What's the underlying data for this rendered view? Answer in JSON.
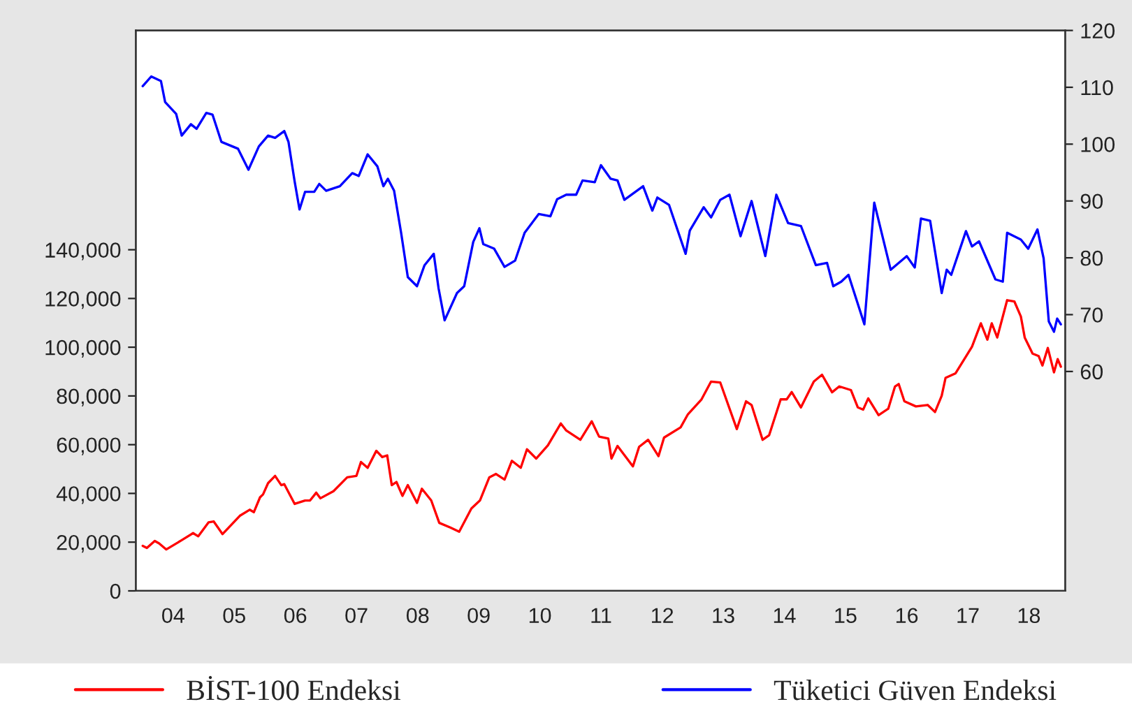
{
  "chart_data": {
    "type": "line",
    "legend": "bottom",
    "grid": false,
    "xlim": [
      "2003-11-21",
      "2019-02-03"
    ],
    "xticks": [
      {
        "value": "2004-07-01",
        "label": "04"
      },
      {
        "value": "2005-07-01",
        "label": "05"
      },
      {
        "value": "2006-07-01",
        "label": "06"
      },
      {
        "value": "2007-07-01",
        "label": "07"
      },
      {
        "value": "2008-07-01",
        "label": "08"
      },
      {
        "value": "2009-07-01",
        "label": "09"
      },
      {
        "value": "2010-07-01",
        "label": "10"
      },
      {
        "value": "2011-07-01",
        "label": "11"
      },
      {
        "value": "2012-07-01",
        "label": "12"
      },
      {
        "value": "2013-07-01",
        "label": "13"
      },
      {
        "value": "2014-07-01",
        "label": "14"
      },
      {
        "value": "2015-07-01",
        "label": "15"
      },
      {
        "value": "2016-07-01",
        "label": "16"
      },
      {
        "value": "2017-07-01",
        "label": "17"
      },
      {
        "value": "2018-07-01",
        "label": "18"
      }
    ],
    "ylim": [
      0,
      230000
    ],
    "yticks": [
      0,
      {
        "value": 20000,
        "label": "20,000"
      },
      {
        "value": 40000,
        "label": "40,000"
      },
      {
        "value": 60000,
        "label": "60,000"
      },
      {
        "value": 80000,
        "label": "80,000"
      },
      {
        "value": 100000,
        "label": "100,000"
      },
      {
        "value": 120000,
        "label": "120,000"
      },
      {
        "value": 140000,
        "label": "140,000"
      }
    ],
    "y2lim": [
      21.4,
      120
    ],
    "y2ticks": [
      60,
      70,
      80,
      90,
      100,
      110,
      120
    ],
    "series": [
      {
        "name": "BİST-100 Endeksi",
        "color": "#ff0000",
        "x": [
          "2004-01-01",
          "2004-01-26",
          "2004-03-13",
          "2004-04-08",
          "2004-05-21",
          "2004-08-21",
          "2004-10-28",
          "2004-11-28",
          "2005-01-28",
          "2005-02-28",
          "2005-04-22",
          "2005-08-03",
          "2005-10-01",
          "2005-10-26",
          "2005-12-02",
          "2005-12-20",
          "2006-01-19",
          "2006-03-02",
          "2006-04-08",
          "2006-04-26",
          "2006-06-27",
          "2006-08-28",
          "2006-09-27",
          "2006-11-03",
          "2006-11-28",
          "2007-02-14",
          "2007-05-07",
          "2007-07-01",
          "2007-07-28",
          "2007-09-06",
          "2007-10-28",
          "2007-12-02",
          "2008-01-01",
          "2008-01-28",
          "2008-02-25",
          "2008-04-01",
          "2008-05-03",
          "2008-06-27",
          "2008-07-26",
          "2008-09-20",
          "2008-11-07",
          "2009-01-12",
          "2009-03-06",
          "2009-05-18",
          "2009-07-08",
          "2009-09-02",
          "2009-10-12",
          "2009-12-02",
          "2010-01-15",
          "2010-03-09",
          "2010-04-15",
          "2010-06-09",
          "2010-08-18",
          "2010-11-03",
          "2010-12-06",
          "2011-02-28",
          "2011-05-07",
          "2011-06-20",
          "2011-08-14",
          "2011-09-02",
          "2011-10-08",
          "2012-01-08",
          "2012-02-14",
          "2012-04-08",
          "2012-06-09",
          "2012-07-12",
          "2012-10-19",
          "2012-12-02",
          "2013-02-21",
          "2013-04-19",
          "2013-06-13",
          "2013-09-20",
          "2013-11-14",
          "2013-12-17",
          "2014-02-21",
          "2014-04-01",
          "2014-06-09",
          "2014-07-15",
          "2014-08-14",
          "2014-10-08",
          "2014-12-24",
          "2015-02-11",
          "2015-04-12",
          "2015-05-25",
          "2015-08-03",
          "2015-09-13",
          "2015-10-15",
          "2015-11-14",
          "2016-01-15",
          "2016-03-13",
          "2016-04-22",
          "2016-05-14",
          "2016-06-17",
          "2016-08-25",
          "2016-11-03",
          "2016-12-17",
          "2017-01-26",
          "2017-02-18",
          "2017-04-19",
          "2017-07-26",
          "2017-09-17",
          "2017-10-26",
          "2017-11-21",
          "2017-12-24",
          "2018-02-21",
          "2018-04-05",
          "2018-05-14",
          "2018-06-06",
          "2018-07-23",
          "2018-08-28",
          "2018-09-20",
          "2018-10-22",
          "2018-11-28",
          "2018-12-20",
          "2019-01-08"
        ],
        "values": [
          18500,
          17600,
          20500,
          19500,
          17000,
          20800,
          23700,
          22400,
          28100,
          28500,
          23300,
          30800,
          33300,
          32300,
          38400,
          39600,
          44200,
          47200,
          43400,
          43800,
          35700,
          37100,
          37100,
          40300,
          38000,
          40900,
          46600,
          47200,
          52900,
          50500,
          57500,
          54900,
          55600,
          43400,
          44700,
          39000,
          43400,
          36100,
          41900,
          37100,
          27900,
          26000,
          24300,
          33800,
          37100,
          46600,
          48000,
          45700,
          53400,
          50500,
          58100,
          54300,
          59700,
          68700,
          65800,
          62000,
          69600,
          63300,
          62500,
          54300,
          59500,
          51100,
          59100,
          62000,
          55300,
          62900,
          67100,
          72500,
          78600,
          85900,
          85500,
          66400,
          77800,
          76300,
          62000,
          63900,
          78600,
          78600,
          81600,
          75300,
          85900,
          88700,
          81500,
          83900,
          82400,
          75300,
          74400,
          79000,
          72100,
          74800,
          83900,
          84900,
          77800,
          75700,
          76300,
          73400,
          80100,
          87400,
          89300,
          100200,
          109800,
          103100,
          109800,
          104000,
          119300,
          118800,
          112600,
          104000,
          97400,
          96400,
          92500,
          99700,
          89700,
          95100,
          92000
        ]
      },
      {
        "name": "Tüketici Güven Endeksi",
        "color": "#0000ff",
        "axis": "y2",
        "x": [
          "2004-01-01",
          "2004-02-21",
          "2004-04-19",
          "2004-05-14",
          "2004-07-19",
          "2004-08-21",
          "2004-10-15",
          "2004-11-18",
          "2005-01-15",
          "2005-02-21",
          "2005-04-15",
          "2005-07-23",
          "2005-09-24",
          "2005-11-25",
          "2006-01-19",
          "2006-03-02",
          "2006-04-26",
          "2006-05-21",
          "2006-06-27",
          "2006-07-26",
          "2006-08-28",
          "2006-10-22",
          "2006-11-21",
          "2007-01-01",
          "2007-03-24",
          "2007-06-06",
          "2007-07-15",
          "2007-09-06",
          "2007-11-03",
          "2007-12-09",
          "2008-01-05",
          "2008-02-11",
          "2008-03-24",
          "2008-05-03",
          "2008-06-27",
          "2008-08-11",
          "2008-10-05",
          "2008-11-03",
          "2008-12-09",
          "2009-02-21",
          "2009-04-05",
          "2009-05-29",
          "2009-07-05",
          "2009-07-28",
          "2009-10-01",
          "2009-12-02",
          "2010-02-03",
          "2010-04-01",
          "2010-06-24",
          "2010-09-02",
          "2010-10-12",
          "2010-12-06",
          "2011-02-03",
          "2011-03-13",
          "2011-05-25",
          "2011-07-01",
          "2011-08-28",
          "2011-10-08",
          "2011-11-18",
          "2012-03-09",
          "2012-05-03",
          "2012-06-02",
          "2012-08-11",
          "2012-11-18",
          "2012-12-13",
          "2013-03-06",
          "2013-04-19",
          "2013-06-13",
          "2013-08-07",
          "2013-10-12",
          "2013-12-17",
          "2014-03-09",
          "2014-05-14",
          "2014-07-23",
          "2014-10-08",
          "2015-01-05",
          "2015-03-13",
          "2015-04-19",
          "2015-06-06",
          "2015-07-19",
          "2015-10-22",
          "2015-12-20",
          "2016-03-27",
          "2016-07-01",
          "2016-08-18",
          "2016-09-24",
          "2016-11-18",
          "2017-01-26",
          "2017-02-25",
          "2017-03-24",
          "2017-06-20",
          "2017-07-26",
          "2017-09-06",
          "2017-12-13",
          "2018-01-26",
          "2018-02-21",
          "2018-05-14",
          "2018-06-27",
          "2018-08-21",
          "2018-09-27",
          "2018-10-28",
          "2018-11-28",
          "2018-12-17",
          "2019-01-08"
        ],
        "values": [
          110.2,
          111.9,
          111.1,
          107.4,
          105.3,
          101.5,
          103.5,
          102.7,
          105.5,
          105.2,
          100.4,
          99.2,
          95.5,
          99.6,
          101.5,
          101.1,
          102.3,
          100.4,
          93.4,
          88.5,
          91.6,
          91.6,
          93.0,
          91.8,
          92.6,
          94.9,
          94.4,
          98.2,
          96.1,
          92.6,
          93.9,
          91.8,
          84.4,
          76.6,
          75.0,
          78.7,
          80.7,
          74.6,
          69.0,
          73.8,
          75.0,
          82.8,
          85.2,
          82.4,
          81.6,
          78.4,
          79.5,
          84.4,
          87.7,
          87.3,
          90.3,
          91.1,
          91.1,
          93.6,
          93.3,
          96.3,
          93.9,
          93.6,
          90.2,
          92.6,
          88.3,
          90.6,
          89.3,
          80.7,
          84.8,
          88.9,
          87.1,
          90.2,
          91.1,
          83.8,
          90.0,
          80.3,
          91.1,
          86.1,
          85.6,
          78.7,
          79.1,
          75.0,
          75.8,
          77.0,
          68.3,
          89.7,
          77.9,
          80.3,
          78.3,
          86.9,
          86.5,
          73.8,
          77.9,
          77.0,
          84.7,
          82.0,
          82.9,
          76.2,
          75.8,
          84.4,
          83.2,
          81.6,
          85.0,
          79.9,
          68.8,
          67.0,
          69.3,
          68.3
        ]
      }
    ]
  }
}
